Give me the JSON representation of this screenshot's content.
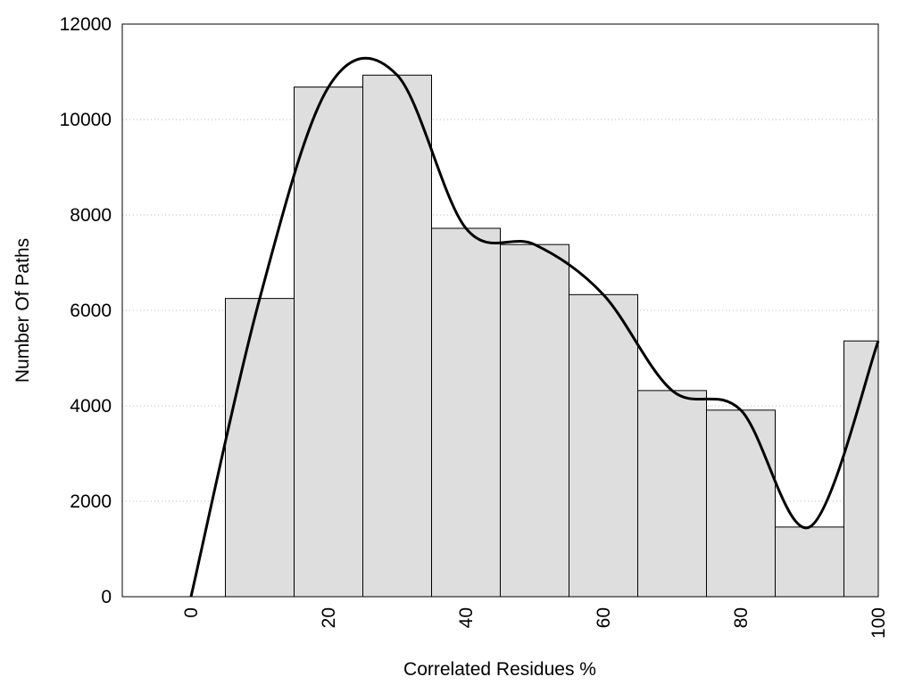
{
  "chart_data": {
    "type": "histogram",
    "xlabel": "Correlated Residues %",
    "ylabel": "Number Of Paths",
    "bins": [
      5,
      15,
      25,
      35,
      45,
      55,
      65,
      75,
      85,
      95,
      100
    ],
    "counts": [
      6250,
      10680,
      10930,
      7720,
      7380,
      6330,
      4320,
      3910,
      1460,
      5360
    ],
    "color": "#dedede",
    "line": {
      "x": [
        0,
        10,
        20,
        30,
        40,
        50,
        60,
        70,
        80,
        90,
        100
      ],
      "values": [
        0,
        6250,
        10680,
        10930,
        7720,
        7380,
        6330,
        4320,
        3910,
        1460,
        5360
      ],
      "color": "#000000"
    },
    "xlim": [
      -10,
      100
    ],
    "ylim": [
      0,
      12000
    ],
    "xticks": [
      0,
      20,
      40,
      60,
      80,
      100
    ],
    "yticks": [
      0,
      2000,
      4000,
      6000,
      8000,
      10000,
      12000
    ],
    "grid": true
  }
}
